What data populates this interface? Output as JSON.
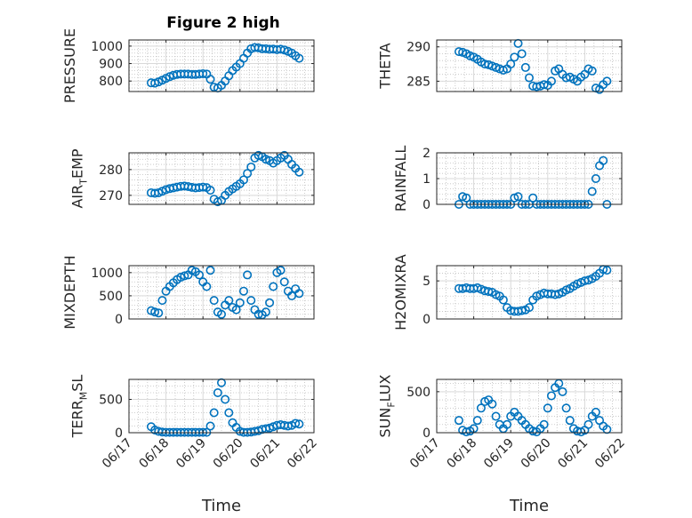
{
  "figure": {
    "title": "Figure 2 high",
    "marker_color": "#0072BD",
    "x_axis": {
      "type": "date",
      "xlim": [
        "06/17",
        "06/22"
      ],
      "tick_labels": [
        "06/17",
        "06/18",
        "06/19",
        "06/20",
        "06/21",
        "06/22"
      ],
      "label": "Time"
    }
  },
  "chart_data": [
    {
      "type": "scatter",
      "ylabel": "PRESSURE",
      "title": "Figure 2 high",
      "ylim": [
        740,
        1035
      ],
      "yticks": [
        800,
        900,
        1000
      ],
      "x": [
        "06/17 14:24",
        "06/17 16:48",
        "06/17 19:12",
        "06/17 21:36",
        "06/18 00:00",
        "06/18 02:24",
        "06/18 04:48",
        "06/18 07:12",
        "06/18 09:36",
        "06/18 12:00",
        "06/18 14:24",
        "06/18 16:48",
        "06/18 19:12",
        "06/18 21:36",
        "06/19 00:00",
        "06/19 02:24",
        "06/19 04:48",
        "06/19 07:12",
        "06/19 09:36",
        "06/19 12:00",
        "06/19 14:24",
        "06/19 16:48",
        "06/19 19:12",
        "06/19 21:36",
        "06/20 00:00",
        "06/20 02:24",
        "06/20 04:48",
        "06/20 07:12",
        "06/20 09:36",
        "06/20 12:00",
        "06/20 14:24",
        "06/20 16:48",
        "06/20 19:12",
        "06/20 21:36",
        "06/21 00:00",
        "06/21 02:24",
        "06/21 04:48",
        "06/21 07:12",
        "06/21 09:36",
        "06/21 12:00",
        "06/21 14:24"
      ],
      "y": [
        790,
        788,
        795,
        805,
        815,
        825,
        833,
        838,
        840,
        840,
        840,
        838,
        838,
        840,
        842,
        840,
        810,
        765,
        760,
        775,
        800,
        830,
        860,
        880,
        900,
        930,
        960,
        985,
        992,
        990,
        985,
        985,
        982,
        983,
        980,
        982,
        978,
        970,
        960,
        945,
        930
      ]
    },
    {
      "type": "scatter",
      "ylabel": "THETA",
      "ylim": [
        283.5,
        291
      ],
      "yticks": [
        285,
        290
      ],
      "x": [
        "06/17 14:24",
        "06/17 16:48",
        "06/17 19:12",
        "06/17 21:36",
        "06/18 00:00",
        "06/18 02:24",
        "06/18 04:48",
        "06/18 07:12",
        "06/18 09:36",
        "06/18 12:00",
        "06/18 14:24",
        "06/18 16:48",
        "06/18 19:12",
        "06/18 21:36",
        "06/19 00:00",
        "06/19 02:24",
        "06/19 04:48",
        "06/19 07:12",
        "06/19 09:36",
        "06/19 12:00",
        "06/19 14:24",
        "06/19 16:48",
        "06/19 19:12",
        "06/19 21:36",
        "06/20 00:00",
        "06/20 02:24",
        "06/20 04:48",
        "06/20 07:12",
        "06/20 09:36",
        "06/20 12:00",
        "06/20 14:24",
        "06/20 16:48",
        "06/20 19:12",
        "06/20 21:36",
        "06/21 00:00",
        "06/21 02:24",
        "06/21 04:48",
        "06/21 07:12",
        "06/21 09:36",
        "06/21 12:00",
        "06/21 14:24"
      ],
      "y": [
        289.3,
        289.2,
        289.0,
        288.7,
        288.5,
        288.2,
        287.8,
        287.5,
        287.4,
        287.2,
        287.0,
        286.8,
        286.6,
        286.8,
        287.5,
        288.5,
        290.5,
        289.0,
        287.0,
        285.5,
        284.3,
        284.2,
        284.3,
        284.5,
        284.4,
        285.0,
        286.5,
        286.8,
        286.0,
        285.5,
        285.6,
        285.3,
        285.0,
        285.6,
        286.0,
        286.8,
        286.5,
        284.0,
        283.8,
        284.5,
        285.0
      ]
    },
    {
      "type": "scatter",
      "ylabel": "AIR_TEMP",
      "ylim": [
        266.5,
        286.5
      ],
      "yticks": [
        270,
        280
      ],
      "x": [
        "06/17 14:24",
        "06/17 16:48",
        "06/17 19:12",
        "06/17 21:36",
        "06/18 00:00",
        "06/18 02:24",
        "06/18 04:48",
        "06/18 07:12",
        "06/18 09:36",
        "06/18 12:00",
        "06/18 14:24",
        "06/18 16:48",
        "06/18 19:12",
        "06/18 21:36",
        "06/19 00:00",
        "06/19 02:24",
        "06/19 04:48",
        "06/19 07:12",
        "06/19 09:36",
        "06/19 12:00",
        "06/19 14:24",
        "06/19 16:48",
        "06/19 19:12",
        "06/19 21:36",
        "06/20 00:00",
        "06/20 02:24",
        "06/20 04:48",
        "06/20 07:12",
        "06/20 09:36",
        "06/20 12:00",
        "06/20 14:24",
        "06/20 16:48",
        "06/20 19:12",
        "06/20 21:36",
        "06/21 00:00",
        "06/21 02:24",
        "06/21 04:48",
        "06/21 07:12",
        "06/21 09:36",
        "06/21 12:00",
        "06/21 14:24"
      ],
      "y": [
        271.0,
        270.8,
        271.0,
        271.6,
        272.2,
        272.6,
        272.9,
        273.2,
        273.5,
        273.6,
        273.4,
        273.1,
        272.9,
        273.0,
        273.2,
        273.0,
        272.0,
        268.5,
        267.5,
        268.0,
        270.0,
        271.5,
        272.5,
        273.5,
        274.5,
        276.0,
        278.5,
        281.0,
        284.5,
        285.5,
        285.0,
        284.0,
        283.5,
        282.5,
        283.5,
        284.5,
        285.5,
        284.0,
        282.0,
        280.5,
        279.0
      ]
    },
    {
      "type": "scatter",
      "ylabel": "RAINFALL",
      "ylim": [
        0,
        2
      ],
      "yticks": [
        0,
        1,
        2
      ],
      "x": [
        "06/17 14:24",
        "06/17 16:48",
        "06/17 19:12",
        "06/17 21:36",
        "06/18 00:00",
        "06/18 02:24",
        "06/18 04:48",
        "06/18 07:12",
        "06/18 09:36",
        "06/18 12:00",
        "06/18 14:24",
        "06/18 16:48",
        "06/18 19:12",
        "06/18 21:36",
        "06/19 00:00",
        "06/19 02:24",
        "06/19 04:48",
        "06/19 07:12",
        "06/19 09:36",
        "06/19 12:00",
        "06/19 14:24",
        "06/19 16:48",
        "06/19 19:12",
        "06/19 21:36",
        "06/20 00:00",
        "06/20 02:24",
        "06/20 04:48",
        "06/20 07:12",
        "06/20 09:36",
        "06/20 12:00",
        "06/20 14:24",
        "06/20 16:48",
        "06/20 19:12",
        "06/20 21:36",
        "06/21 00:00",
        "06/21 02:24",
        "06/21 04:48",
        "06/21 07:12",
        "06/21 09:36",
        "06/21 12:00",
        "06/21 14:24"
      ],
      "y": [
        0,
        0.3,
        0.25,
        0,
        0,
        0,
        0,
        0,
        0,
        0,
        0,
        0,
        0,
        0,
        0,
        0.25,
        0.3,
        0,
        0,
        0,
        0.25,
        0,
        0,
        0,
        0,
        0,
        0,
        0,
        0,
        0,
        0,
        0,
        0,
        0,
        0,
        0,
        0.5,
        1.0,
        1.5,
        1.7,
        0
      ]
    },
    {
      "type": "scatter",
      "ylabel": "MIXDEPTH",
      "ylim": [
        0,
        1150
      ],
      "yticks": [
        0,
        500,
        1000
      ],
      "x": [
        "06/17 14:24",
        "06/17 16:48",
        "06/17 19:12",
        "06/17 21:36",
        "06/18 00:00",
        "06/18 02:24",
        "06/18 04:48",
        "06/18 07:12",
        "06/18 09:36",
        "06/18 12:00",
        "06/18 14:24",
        "06/18 16:48",
        "06/18 19:12",
        "06/18 21:36",
        "06/19 00:00",
        "06/19 02:24",
        "06/19 04:48",
        "06/19 07:12",
        "06/19 09:36",
        "06/19 12:00",
        "06/19 14:24",
        "06/19 16:48",
        "06/19 19:12",
        "06/19 21:36",
        "06/20 00:00",
        "06/20 02:24",
        "06/20 04:48",
        "06/20 07:12",
        "06/20 09:36",
        "06/20 12:00",
        "06/20 14:24",
        "06/20 16:48",
        "06/20 19:12",
        "06/20 21:36",
        "06/21 00:00",
        "06/21 02:24",
        "06/21 04:48",
        "06/21 07:12",
        "06/21 09:36",
        "06/21 12:00",
        "06/21 14:24"
      ],
      "y": [
        180,
        150,
        130,
        400,
        600,
        700,
        780,
        850,
        900,
        930,
        950,
        1050,
        1020,
        950,
        800,
        700,
        1050,
        400,
        150,
        100,
        300,
        400,
        250,
        200,
        350,
        600,
        950,
        400,
        200,
        100,
        90,
        150,
        350,
        700,
        1000,
        1050,
        800,
        600,
        500,
        650,
        550
      ]
    },
    {
      "type": "scatter",
      "ylabel": "H2OMIXRA",
      "ylim": [
        0,
        7
      ],
      "yticks": [
        0,
        5
      ],
      "x": [
        "06/17 14:24",
        "06/17 16:48",
        "06/17 19:12",
        "06/17 21:36",
        "06/18 00:00",
        "06/18 02:24",
        "06/18 04:48",
        "06/18 07:12",
        "06/18 09:36",
        "06/18 12:00",
        "06/18 14:24",
        "06/18 16:48",
        "06/18 19:12",
        "06/18 21:36",
        "06/19 00:00",
        "06/19 02:24",
        "06/19 04:48",
        "06/19 07:12",
        "06/19 09:36",
        "06/19 12:00",
        "06/19 14:24",
        "06/19 16:48",
        "06/19 19:12",
        "06/19 21:36",
        "06/20 00:00",
        "06/20 02:24",
        "06/20 04:48",
        "06/20 07:12",
        "06/20 09:36",
        "06/20 12:00",
        "06/20 14:24",
        "06/20 16:48",
        "06/20 19:12",
        "06/20 21:36",
        "06/21 00:00",
        "06/21 02:24",
        "06/21 04:48",
        "06/21 07:12",
        "06/21 09:36",
        "06/21 12:00",
        "06/21 14:24"
      ],
      "y": [
        4.0,
        4.0,
        4.1,
        4.0,
        4.0,
        4.1,
        3.9,
        3.7,
        3.6,
        3.5,
        3.2,
        3.0,
        2.5,
        1.5,
        1.1,
        1.0,
        1.0,
        1.1,
        1.2,
        1.5,
        2.5,
        3.0,
        3.2,
        3.4,
        3.3,
        3.3,
        3.2,
        3.3,
        3.5,
        3.8,
        4.0,
        4.3,
        4.6,
        4.8,
        5.0,
        5.1,
        5.3,
        5.6,
        6.0,
        6.5,
        6.4
      ]
    },
    {
      "type": "scatter",
      "ylabel": "TERR_MSL",
      "ylim": [
        0,
        800
      ],
      "yticks": [
        0,
        500
      ],
      "x": [
        "06/17 14:24",
        "06/17 16:48",
        "06/17 19:12",
        "06/17 21:36",
        "06/18 00:00",
        "06/18 02:24",
        "06/18 04:48",
        "06/18 07:12",
        "06/18 09:36",
        "06/18 12:00",
        "06/18 14:24",
        "06/18 16:48",
        "06/18 19:12",
        "06/18 21:36",
        "06/19 00:00",
        "06/19 02:24",
        "06/19 04:48",
        "06/19 07:12",
        "06/19 09:36",
        "06/19 12:00",
        "06/19 14:24",
        "06/19 16:48",
        "06/19 19:12",
        "06/19 21:36",
        "06/20 00:00",
        "06/20 02:24",
        "06/20 04:48",
        "06/20 07:12",
        "06/20 09:36",
        "06/20 12:00",
        "06/20 14:24",
        "06/20 16:48",
        "06/20 19:12",
        "06/20 21:36",
        "06/21 00:00",
        "06/21 02:24",
        "06/21 04:48",
        "06/21 07:12",
        "06/21 09:36",
        "06/21 12:00",
        "06/21 14:24"
      ],
      "y": [
        90,
        40,
        20,
        10,
        5,
        5,
        5,
        5,
        5,
        5,
        5,
        5,
        5,
        5,
        5,
        5,
        100,
        300,
        600,
        750,
        500,
        300,
        150,
        80,
        20,
        5,
        5,
        10,
        20,
        30,
        50,
        60,
        70,
        90,
        110,
        120,
        110,
        100,
        110,
        140,
        130
      ]
    },
    {
      "type": "scatter",
      "ylabel": "SUN_FLUX",
      "ylim": [
        0,
        650
      ],
      "yticks": [
        0,
        500
      ],
      "x": [
        "06/17 14:24",
        "06/17 16:48",
        "06/17 19:12",
        "06/17 21:36",
        "06/18 00:00",
        "06/18 02:24",
        "06/18 04:48",
        "06/18 07:12",
        "06/18 09:36",
        "06/18 12:00",
        "06/18 14:24",
        "06/18 16:48",
        "06/18 19:12",
        "06/18 21:36",
        "06/19 00:00",
        "06/19 02:24",
        "06/19 04:48",
        "06/19 07:12",
        "06/19 09:36",
        "06/19 12:00",
        "06/19 14:24",
        "06/19 16:48",
        "06/19 19:12",
        "06/19 21:36",
        "06/20 00:00",
        "06/20 02:24",
        "06/20 04:48",
        "06/20 07:12",
        "06/20 09:36",
        "06/20 12:00",
        "06/20 14:24",
        "06/20 16:48",
        "06/20 19:12",
        "06/20 21:36",
        "06/21 00:00",
        "06/21 02:24",
        "06/21 04:48",
        "06/21 07:12",
        "06/21 09:36",
        "06/21 12:00",
        "06/21 14:24"
      ],
      "y": [
        150,
        30,
        10,
        20,
        50,
        150,
        300,
        380,
        400,
        350,
        200,
        100,
        50,
        100,
        200,
        250,
        200,
        150,
        100,
        50,
        20,
        10,
        50,
        100,
        300,
        450,
        550,
        600,
        500,
        300,
        150,
        50,
        20,
        10,
        30,
        100,
        200,
        250,
        150,
        80,
        40
      ]
    }
  ]
}
